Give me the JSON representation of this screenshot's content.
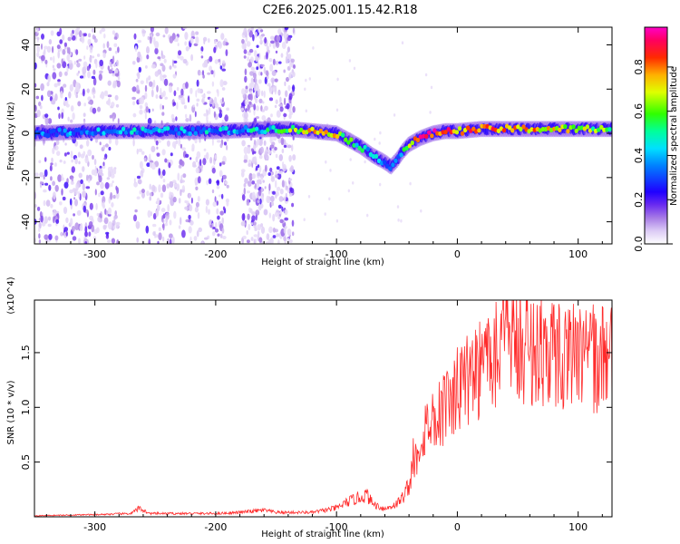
{
  "title": "C2E6.2025.001.15.42.R18",
  "chart_data": [
    {
      "type": "heatmap",
      "xlabel": "Height of straight line (km)",
      "ylabel": "Frequency (Hz)",
      "xlim": [
        -350,
        128
      ],
      "ylim": [
        -50,
        48
      ],
      "xticks": [
        -300,
        -200,
        -100,
        0,
        100
      ],
      "yticks": [
        -40,
        -20,
        0,
        20,
        40
      ],
      "colorbar": {
        "label": "Normalized spectral amplitude",
        "range": [
          0.0,
          0.98
        ],
        "ticks": [
          0.0,
          0.2,
          0.4,
          0.6,
          0.8
        ],
        "colormap": [
          "#ffffff",
          "#c9a8f2",
          "#8a2be2",
          "#2a00ff",
          "#00c8ff",
          "#00ff80",
          "#ffff00",
          "#ff8000",
          "#ff0000",
          "#ff00ff"
        ]
      },
      "ridge": {
        "x": [
          -350,
          -300,
          -250,
          -200,
          -150,
          -140,
          -120,
          -100,
          -90,
          -80,
          -70,
          -60,
          -55,
          -50,
          -45,
          -40,
          -30,
          -20,
          -10,
          0,
          20,
          40,
          60,
          80,
          100,
          128
        ],
        "frequency": [
          0,
          1,
          1,
          1,
          2,
          2,
          1,
          0,
          -3,
          -6,
          -10,
          -13,
          -15,
          -12,
          -8,
          -5,
          -2,
          0,
          1,
          1,
          2,
          2,
          2,
          2,
          2,
          2
        ],
        "amplitude": [
          0.3,
          0.35,
          0.4,
          0.4,
          0.45,
          0.6,
          0.75,
          0.7,
          0.6,
          0.5,
          0.4,
          0.35,
          0.3,
          0.35,
          0.55,
          0.75,
          0.85,
          0.9,
          0.85,
          0.8,
          0.8,
          0.8,
          0.75,
          0.7,
          0.65,
          0.6
        ]
      },
      "noise_region_x": [
        -350,
        -135
      ]
    },
    {
      "type": "line",
      "xlabel": "Height of straight line (km)",
      "ylabel": "SNR (10 * v/v)",
      "y_multiplier": "(x10^4)",
      "xlim": [
        -350,
        128
      ],
      "ylim": [
        0.0,
        1.98
      ],
      "xticks": [
        -300,
        -200,
        -100,
        0,
        100
      ],
      "yticks": [
        0.5,
        1.0,
        1.5
      ],
      "color": "#ff2a2a",
      "series": [
        {
          "x": [
            -350,
            -300,
            -270,
            -263,
            -255,
            -200,
            -180,
            -170,
            -160,
            -150,
            -120,
            -100,
            -90,
            -80,
            -75,
            -70,
            -60,
            -50,
            -45,
            -40,
            -35,
            -30,
            -25,
            -20,
            -15,
            -10,
            -5,
            0,
            10,
            20,
            30,
            40,
            50,
            60,
            70,
            80,
            90,
            100,
            110,
            120,
            128
          ],
          "values": [
            0.01,
            0.02,
            0.03,
            0.08,
            0.03,
            0.03,
            0.04,
            0.05,
            0.06,
            0.04,
            0.04,
            0.08,
            0.14,
            0.18,
            0.2,
            0.12,
            0.07,
            0.12,
            0.18,
            0.3,
            0.5,
            0.72,
            0.85,
            0.9,
            0.95,
            1.02,
            1.08,
            1.15,
            1.28,
            1.38,
            1.52,
            1.6,
            1.58,
            1.55,
            1.52,
            1.5,
            1.48,
            1.46,
            1.45,
            1.44,
            1.44
          ]
        }
      ]
    }
  ]
}
